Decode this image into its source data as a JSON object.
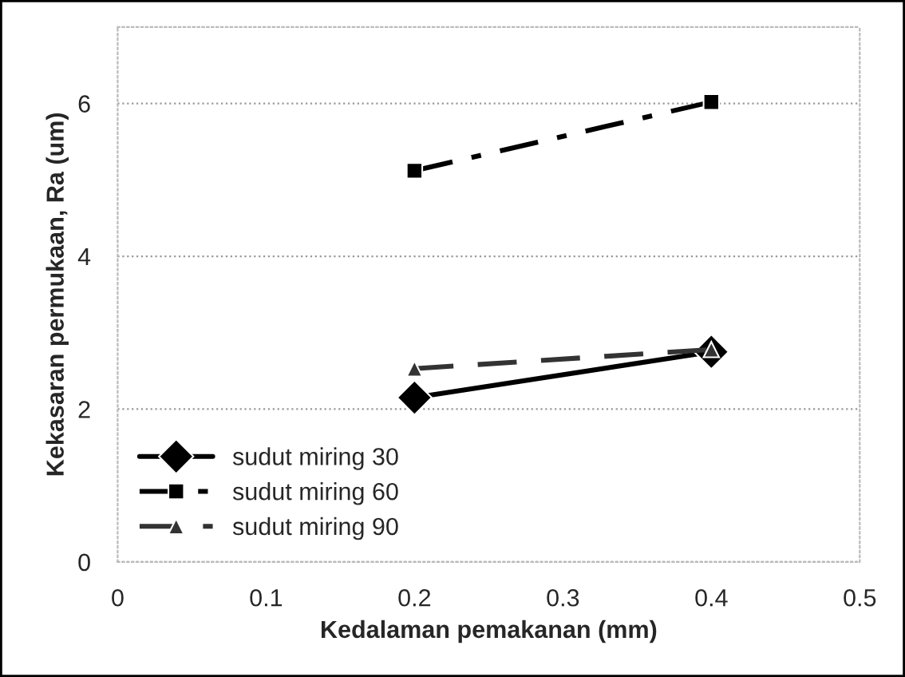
{
  "chart_data": {
    "type": "line",
    "xlabel": "Kedalaman pemakanan (mm)",
    "ylabel": "Kekasaran permukaan, Ra (um)",
    "x": [
      0.2,
      0.4
    ],
    "series": [
      {
        "name": "sudut miring 30",
        "color": "#000000",
        "values": [
          2.15,
          2.75
        ],
        "marker": "diamond",
        "line_style": "solid"
      },
      {
        "name": "sudut miring 60",
        "color": "#000000",
        "values": [
          5.12,
          6.02
        ],
        "marker": "square",
        "line_style": "dashdot"
      },
      {
        "name": "sudut miring 90",
        "color": "#333333",
        "values": [
          2.53,
          2.78
        ],
        "marker": "triangle",
        "line_style": "dashed"
      }
    ],
    "xlim": [
      0,
      0.5
    ],
    "xticks": [
      0,
      0.1,
      0.2,
      0.3,
      0.4,
      0.5
    ],
    "ylim": [
      0,
      7
    ],
    "yticks": [
      0,
      2,
      4,
      6
    ],
    "grid": "y",
    "legend": "bottom left"
  }
}
